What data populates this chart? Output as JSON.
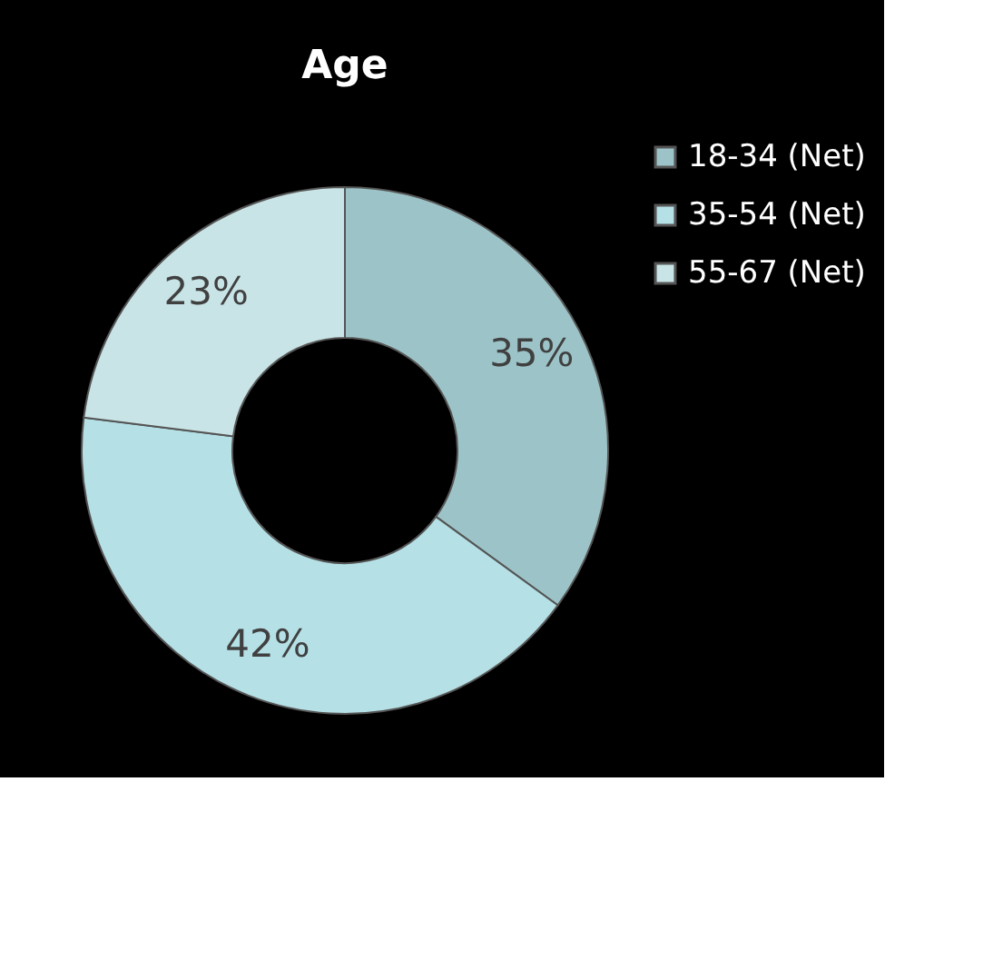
{
  "chart_data": {
    "type": "donut",
    "title": "Age",
    "categories": [
      "18-34 (Net)",
      "35-54 (Net)",
      "55-67 (Net)"
    ],
    "values": [
      35,
      42,
      23
    ],
    "colors": [
      "#9cc4c8",
      "#b4e0e6",
      "#c8e4e6"
    ],
    "value_labels": [
      "35%",
      "42%",
      "23%"
    ],
    "legend": "right"
  }
}
